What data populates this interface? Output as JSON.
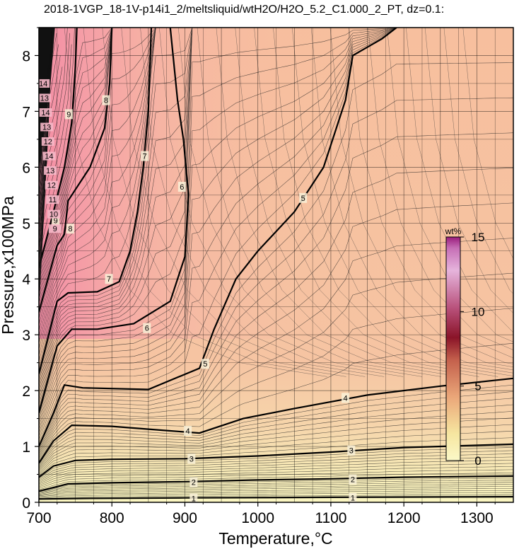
{
  "chart_data": {
    "type": "contour",
    "title": "2018-1VGP_18-1V-p14i1_2/meltsliquid/wtH2O/H2O_5.2_C1.000_2_PT, dz=0.1:",
    "xlabel": "Temperature,°C",
    "ylabel": "Pressure,x100MPa",
    "xlim": [
      700,
      1350
    ],
    "ylim": [
      0,
      8.5
    ],
    "x_ticks": [
      700,
      800,
      900,
      1000,
      1100,
      1200,
      1300
    ],
    "y_ticks": [
      0,
      1,
      2,
      3,
      4,
      5,
      6,
      7,
      8
    ],
    "grid": true,
    "contour_interval": 0.1,
    "colorbar": {
      "unit": "wt%",
      "range": [
        0,
        15
      ],
      "ticks": [
        0,
        5,
        10,
        15
      ],
      "placement": "right-inside"
    },
    "colors": {
      "low": "#f8f6c8",
      "mid": "#f6bf9e",
      "high": "#f5a0aa",
      "cbar_top": "#c8208c",
      "cbar_mid": "#8a1430",
      "cbar_bottom": "#f8f6c8"
    },
    "labeled_contours": [
      {
        "level": 1,
        "points": [
          [
            700,
            0.06
          ],
          [
            760,
            0.07
          ],
          [
            900,
            0.08
          ],
          [
            1100,
            0.09
          ],
          [
            1350,
            0.1
          ]
        ],
        "labels": [
          [
            912,
            0.07
          ],
          [
            1130,
            0.08
          ]
        ]
      },
      {
        "level": 2,
        "points": [
          [
            700,
            0.2
          ],
          [
            740,
            0.33
          ],
          [
            800,
            0.35
          ],
          [
            900,
            0.37
          ],
          [
            1000,
            0.4
          ],
          [
            1100,
            0.42
          ],
          [
            1200,
            0.45
          ],
          [
            1350,
            0.47
          ]
        ],
        "labels": [
          [
            912,
            0.36
          ],
          [
            1130,
            0.41
          ]
        ]
      },
      {
        "level": 3,
        "points": [
          [
            700,
            0.45
          ],
          [
            720,
            0.65
          ],
          [
            750,
            0.75
          ],
          [
            800,
            0.77
          ],
          [
            900,
            0.78
          ],
          [
            1000,
            0.83
          ],
          [
            1100,
            0.9
          ],
          [
            1200,
            0.98
          ],
          [
            1350,
            1.04
          ]
        ],
        "labels": [
          [
            909,
            0.78
          ],
          [
            1128,
            0.93
          ]
        ]
      },
      {
        "level": 4,
        "points": [
          [
            700,
            0.7
          ],
          [
            720,
            1.1
          ],
          [
            745,
            1.38
          ],
          [
            800,
            1.36
          ],
          [
            880,
            1.28
          ],
          [
            920,
            1.24
          ],
          [
            980,
            1.5
          ],
          [
            1050,
            1.68
          ],
          [
            1150,
            1.92
          ],
          [
            1250,
            2.08
          ],
          [
            1350,
            2.22
          ]
        ],
        "labels": [
          [
            904,
            1.28
          ],
          [
            1120,
            1.87
          ]
        ]
      },
      {
        "level": 5,
        "points": [
          [
            700,
            1.0
          ],
          [
            720,
            1.6
          ],
          [
            735,
            2.1
          ],
          [
            760,
            2.05
          ],
          [
            850,
            2.02
          ],
          [
            920,
            2.4
          ],
          [
            940,
            3.1
          ],
          [
            970,
            4.0
          ],
          [
            1000,
            4.5
          ],
          [
            1050,
            5.2
          ],
          [
            1090,
            6.0
          ],
          [
            1120,
            7.2
          ],
          [
            1130,
            8.0
          ],
          [
            1170,
            8.3
          ],
          [
            1190,
            8.5
          ]
        ],
        "labels": [
          [
            928,
            2.48
          ],
          [
            1062,
            5.45
          ]
        ]
      },
      {
        "level": 6,
        "points": [
          [
            700,
            1.6
          ],
          [
            725,
            2.8
          ],
          [
            745,
            3.1
          ],
          [
            780,
            3.1
          ],
          [
            830,
            3.2
          ],
          [
            880,
            3.6
          ],
          [
            900,
            4.4
          ],
          [
            905,
            5.5
          ],
          [
            898,
            6.5
          ],
          [
            890,
            7.2
          ],
          [
            880,
            8.5
          ]
        ],
        "labels": [
          [
            848,
            3.12
          ],
          [
            896,
            5.65
          ]
        ]
      },
      {
        "level": 7,
        "points": [
          [
            700,
            2.3
          ],
          [
            725,
            3.6
          ],
          [
            740,
            3.75
          ],
          [
            780,
            3.77
          ],
          [
            810,
            3.95
          ],
          [
            825,
            4.5
          ],
          [
            835,
            5.2
          ],
          [
            843,
            6.0
          ],
          [
            850,
            7.0
          ],
          [
            854,
            8.5
          ]
        ],
        "labels": [
          [
            796,
            4.0
          ],
          [
            845,
            6.2
          ]
        ]
      },
      {
        "level": 8,
        "points": [
          [
            700,
            3.4
          ],
          [
            725,
            4.6
          ],
          [
            735,
            4.8
          ],
          [
            740,
            5.4
          ],
          [
            770,
            6.0
          ],
          [
            790,
            6.7
          ],
          [
            797,
            7.5
          ],
          [
            800,
            8.5
          ]
        ],
        "labels": [
          [
            743,
            4.9
          ],
          [
            792,
            7.2
          ]
        ]
      },
      {
        "level": 9,
        "points": [
          [
            700,
            4.2
          ],
          [
            720,
            5.2
          ],
          [
            735,
            6.0
          ],
          [
            745,
            6.8
          ],
          [
            750,
            7.8
          ],
          [
            752,
            8.5
          ]
        ],
        "labels": [
          [
            723,
            5.05
          ],
          [
            741,
            6.95
          ]
        ]
      }
    ],
    "label_stack": [
      "14",
      "13",
      "14",
      "13",
      "12",
      "14",
      "13",
      "12",
      "11",
      "10",
      "9"
    ]
  }
}
